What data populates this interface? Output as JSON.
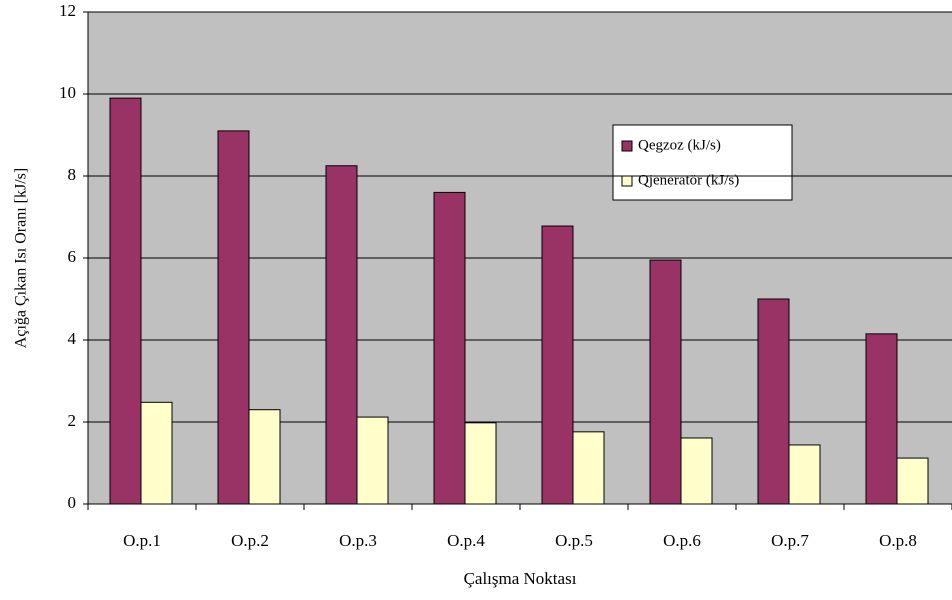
{
  "chart_data": {
    "type": "bar",
    "x_label": "Çalışma Noktası",
    "y_label": "Açığa Çıkan Isı Oranı [kJ/s]",
    "categories": [
      "O.p.1",
      "O.p.2",
      "O.p.3",
      "O.p.4",
      "O.p.5",
      "O.p.6",
      "O.p.7",
      "O.p.8"
    ],
    "series": [
      {
        "name": "Qegzoz (kJ/s)",
        "color": "#993366",
        "values": [
          9.9,
          9.1,
          8.25,
          7.6,
          6.78,
          5.95,
          5.0,
          4.15
        ]
      },
      {
        "name": "Qjeneratör (kJ/s)",
        "color": "#ffffcc",
        "values": [
          2.48,
          2.3,
          2.12,
          1.98,
          1.76,
          1.61,
          1.44,
          1.12
        ]
      }
    ],
    "ylim": [
      0,
      12
    ],
    "yticks": [
      0,
      2,
      4,
      6,
      8,
      10,
      12
    ],
    "grid": true
  }
}
